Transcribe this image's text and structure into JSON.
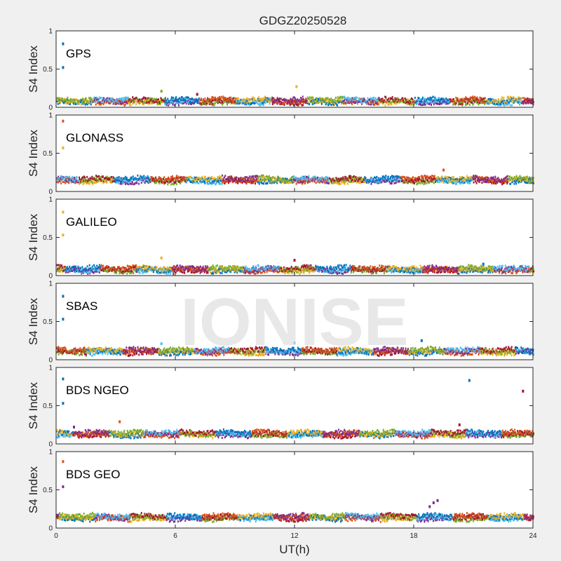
{
  "title": "GDGZ20250528",
  "watermark": "IONISE",
  "colors": {
    "background": "#f0f0f0",
    "panel": "#ffffff",
    "axis": "#262626",
    "series_palette": [
      "#0072BD",
      "#D95319",
      "#EDB120",
      "#7E2F8E",
      "#77AC30",
      "#4DBEEE",
      "#A2142F"
    ]
  },
  "chart_data": [
    {
      "type": "scatter",
      "name": "GPS",
      "xlabel": "",
      "ylabel": "S4 Index",
      "xlim": [
        0,
        24
      ],
      "ylim": [
        0,
        1
      ],
      "xticks": [
        0,
        6,
        12,
        18,
        24
      ],
      "yticks": [
        0,
        0.5,
        1
      ],
      "ytick_labels": [
        "0",
        "0.5",
        "1"
      ],
      "baseline_s4": 0.08,
      "spikes": [
        {
          "x": 0.35,
          "y": 0.83,
          "color": "#0072BD"
        },
        {
          "x": 0.35,
          "y": 0.52,
          "color": "#0072BD"
        },
        {
          "x": 5.3,
          "y": 0.21,
          "color": "#77AC30"
        },
        {
          "x": 12.1,
          "y": 0.27,
          "color": "#EDB120"
        },
        {
          "x": 7.1,
          "y": 0.17,
          "color": "#A2142F"
        }
      ]
    },
    {
      "type": "scatter",
      "name": "GLONASS",
      "xlabel": "",
      "ylabel": "S4 Index",
      "xlim": [
        0,
        24
      ],
      "ylim": [
        0,
        1
      ],
      "xticks": [
        0,
        6,
        12,
        18,
        24
      ],
      "yticks": [
        0,
        0.5,
        1
      ],
      "ytick_labels": [
        "0",
        "0.5",
        "1"
      ],
      "baseline_s4": 0.15,
      "spikes": [
        {
          "x": 0.35,
          "y": 0.92,
          "color": "#D95319"
        },
        {
          "x": 0.35,
          "y": 0.57,
          "color": "#EDB120"
        },
        {
          "x": 19.5,
          "y": 0.28,
          "color": "#D95319"
        }
      ]
    },
    {
      "type": "scatter",
      "name": "GALILEO",
      "xlabel": "",
      "ylabel": "S4 Index",
      "xlim": [
        0,
        24
      ],
      "ylim": [
        0,
        1
      ],
      "xticks": [
        0,
        6,
        12,
        18,
        24
      ],
      "yticks": [
        0,
        0.5,
        1
      ],
      "ytick_labels": [
        "0",
        "0.5",
        "1"
      ],
      "baseline_s4": 0.08,
      "spikes": [
        {
          "x": 0.35,
          "y": 0.83,
          "color": "#EDB120"
        },
        {
          "x": 0.35,
          "y": 0.53,
          "color": "#EDB120"
        },
        {
          "x": 5.3,
          "y": 0.23,
          "color": "#EDB120"
        },
        {
          "x": 12.0,
          "y": 0.2,
          "color": "#A2142F"
        },
        {
          "x": 21.5,
          "y": 0.15,
          "color": "#0072BD"
        }
      ]
    },
    {
      "type": "scatter",
      "name": "SBAS",
      "xlabel": "",
      "ylabel": "S4 Index",
      "xlim": [
        0,
        24
      ],
      "ylim": [
        0,
        1
      ],
      "xticks": [
        0,
        6,
        12,
        18,
        24
      ],
      "yticks": [
        0,
        0.5,
        1
      ],
      "ytick_labels": [
        "0",
        "0.5",
        "1"
      ],
      "baseline_s4": 0.11,
      "spikes": [
        {
          "x": 0.35,
          "y": 0.83,
          "color": "#0072BD"
        },
        {
          "x": 0.35,
          "y": 0.53,
          "color": "#0072BD"
        },
        {
          "x": 5.3,
          "y": 0.21,
          "color": "#4DBEEE"
        },
        {
          "x": 12.0,
          "y": 0.22,
          "color": "#4DBEEE"
        },
        {
          "x": 18.4,
          "y": 0.25,
          "color": "#0072BD"
        }
      ]
    },
    {
      "type": "scatter",
      "name": "BDS NGEO",
      "xlabel": "",
      "ylabel": "S4 Index",
      "xlim": [
        0,
        24
      ],
      "ylim": [
        0,
        1
      ],
      "xticks": [
        0,
        6,
        12,
        18,
        24
      ],
      "yticks": [
        0,
        0.5,
        1
      ],
      "ytick_labels": [
        "0",
        "0.5",
        "1"
      ],
      "baseline_s4": 0.13,
      "spikes": [
        {
          "x": 0.35,
          "y": 0.85,
          "color": "#0072BD"
        },
        {
          "x": 0.35,
          "y": 0.53,
          "color": "#0072BD"
        },
        {
          "x": 0.9,
          "y": 0.22,
          "color": "#7E2F8E"
        },
        {
          "x": 3.2,
          "y": 0.29,
          "color": "#D95319"
        },
        {
          "x": 20.8,
          "y": 0.83,
          "color": "#0072BD"
        },
        {
          "x": 23.5,
          "y": 0.69,
          "color": "#A2142F"
        },
        {
          "x": 20.3,
          "y": 0.25,
          "color": "#A2142F"
        }
      ]
    },
    {
      "type": "scatter",
      "name": "BDS GEO",
      "xlabel": "UT(h)",
      "ylabel": "S4 Index",
      "xlim": [
        0,
        24
      ],
      "ylim": [
        0,
        1
      ],
      "xticks": [
        0,
        6,
        12,
        18,
        24
      ],
      "yticks": [
        0,
        0.5,
        1
      ],
      "ytick_labels": [
        "0",
        "0.5",
        "1"
      ],
      "baseline_s4": 0.14,
      "spikes": [
        {
          "x": 0.35,
          "y": 0.87,
          "color": "#D95319"
        },
        {
          "x": 0.35,
          "y": 0.54,
          "color": "#7E2F8E"
        },
        {
          "x": 19.0,
          "y": 0.33,
          "color": "#7E2F8E"
        },
        {
          "x": 19.2,
          "y": 0.36,
          "color": "#7E2F8E"
        },
        {
          "x": 18.8,
          "y": 0.28,
          "color": "#7E2F8E"
        }
      ]
    }
  ]
}
